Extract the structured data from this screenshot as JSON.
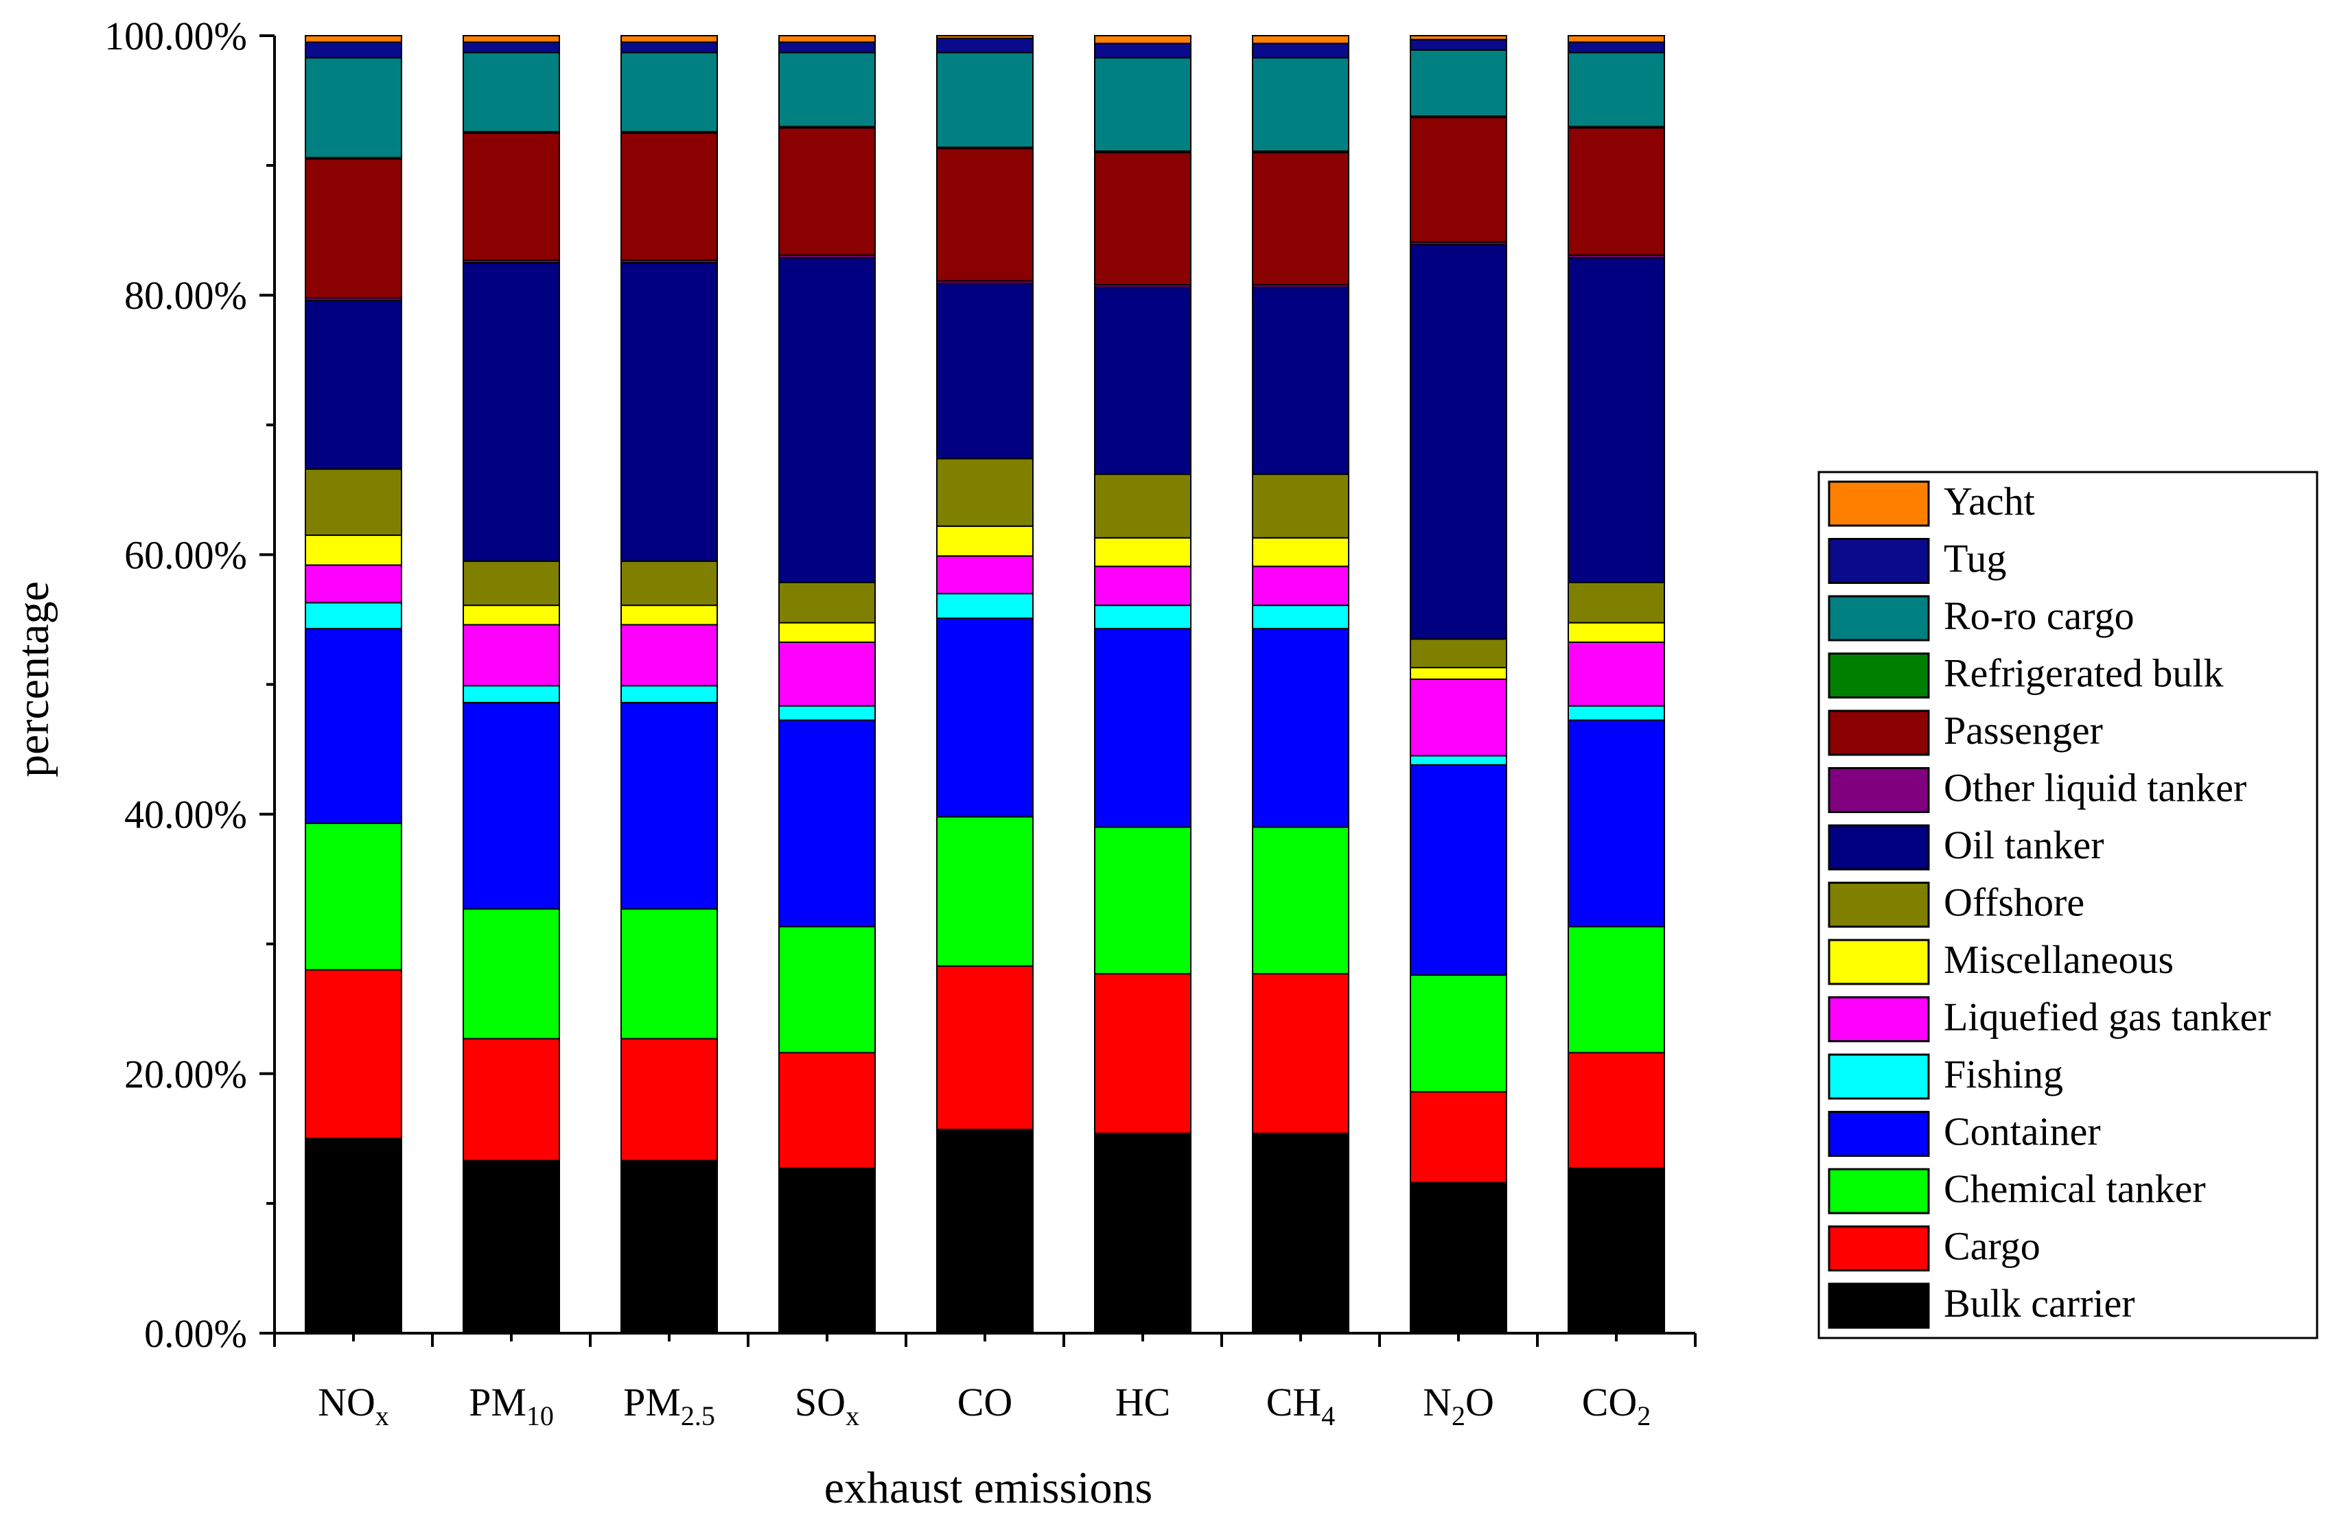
{
  "chart_data": {
    "type": "stacked-bar",
    "title": "",
    "xlabel": "exhaust emissions",
    "ylabel": "percentage",
    "ylim": [
      0,
      100
    ],
    "yticks": [
      "0.00%",
      "20.00%",
      "40.00%",
      "60.00%",
      "80.00%",
      "100.00%"
    ],
    "categories": [
      {
        "main": "NO",
        "sub": "x"
      },
      {
        "main": "PM",
        "sub": "10"
      },
      {
        "main": "PM",
        "sub": "2.5"
      },
      {
        "main": "SO",
        "sub": "x"
      },
      {
        "main": "CO",
        "sub": ""
      },
      {
        "main": "HC",
        "sub": ""
      },
      {
        "main": "CH",
        "sub": "4"
      },
      {
        "main": "N",
        "sub": "2",
        "tail": "O"
      },
      {
        "main": "CO",
        "sub": "2"
      }
    ],
    "series": [
      {
        "name": "Bulk carrier",
        "color": "#000000",
        "values": [
          15.0,
          13.3,
          13.3,
          12.7,
          15.7,
          15.4,
          15.4,
          11.6,
          12.7
        ]
      },
      {
        "name": "Cargo",
        "color": "#ff0000",
        "values": [
          13.0,
          9.4,
          9.4,
          8.9,
          12.6,
          12.3,
          12.3,
          7.0,
          8.9
        ]
      },
      {
        "name": "Chemical tanker",
        "color": "#00ff00",
        "values": [
          11.3,
          10.0,
          10.0,
          9.7,
          11.5,
          11.3,
          11.3,
          9.0,
          9.7
        ]
      },
      {
        "name": "Container",
        "color": "#0000ff",
        "values": [
          15.0,
          15.9,
          15.9,
          15.9,
          15.3,
          15.3,
          15.3,
          16.2,
          15.9
        ]
      },
      {
        "name": "Fishing",
        "color": "#00ffff",
        "values": [
          2.0,
          1.3,
          1.3,
          1.1,
          1.9,
          1.8,
          1.8,
          0.7,
          1.1
        ]
      },
      {
        "name": "Liquefied gas tanker",
        "color": "#ff00ff",
        "values": [
          2.9,
          4.7,
          4.7,
          4.9,
          2.9,
          3.0,
          3.0,
          5.9,
          4.9
        ]
      },
      {
        "name": "Miscellaneous",
        "color": "#ffff00",
        "values": [
          2.3,
          1.5,
          1.5,
          1.5,
          2.3,
          2.2,
          2.2,
          0.9,
          1.5
        ]
      },
      {
        "name": "Offshore",
        "color": "#808000",
        "values": [
          5.1,
          3.4,
          3.4,
          3.1,
          5.2,
          4.9,
          4.9,
          2.2,
          3.1
        ]
      },
      {
        "name": "Oil tanker",
        "color": "#000080",
        "values": [
          13.0,
          23.0,
          23.0,
          25.0,
          13.5,
          14.4,
          14.4,
          30.4,
          25.0
        ]
      },
      {
        "name": "Other liquid tanker",
        "color": "#800080",
        "values": [
          0.2,
          0.2,
          0.2,
          0.2,
          0.2,
          0.2,
          0.2,
          0.2,
          0.2
        ]
      },
      {
        "name": "Passenger",
        "color": "#8b0000",
        "values": [
          10.7,
          9.8,
          9.8,
          9.8,
          10.2,
          10.2,
          10.2,
          9.6,
          9.8
        ]
      },
      {
        "name": "Refrigerated bulk",
        "color": "#008000",
        "values": [
          0.1,
          0.1,
          0.1,
          0.1,
          0.1,
          0.1,
          0.1,
          0.1,
          0.1
        ]
      },
      {
        "name": "Ro-ro cargo",
        "color": "#008080",
        "values": [
          7.7,
          6.1,
          6.1,
          5.7,
          7.3,
          7.2,
          7.2,
          5.1,
          5.7
        ]
      },
      {
        "name": "Tug",
        "color": "#0a0a8c",
        "values": [
          1.2,
          0.8,
          0.8,
          0.8,
          1.1,
          1.1,
          1.1,
          0.8,
          0.8
        ]
      },
      {
        "name": "Yacht",
        "color": "#ff8000",
        "values": [
          0.5,
          0.5,
          0.5,
          0.5,
          0.2,
          0.6,
          0.6,
          0.3,
          0.5
        ]
      }
    ],
    "legend_order": [
      "Yacht",
      "Tug",
      "Ro-ro cargo",
      "Refrigerated bulk",
      "Passenger",
      "Other liquid tanker",
      "Oil tanker",
      "Offshore",
      "Miscellaneous",
      "Liquefied gas tanker",
      "Fishing",
      "Container",
      "Chemical tanker",
      "Cargo",
      "Bulk carrier"
    ],
    "legend_position": "right"
  }
}
